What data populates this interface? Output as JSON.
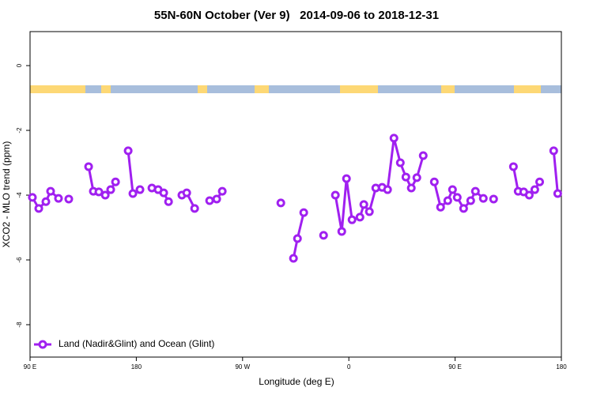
{
  "chart_data": {
    "type": "line",
    "title": "55N-60N October (Ver 9)   2014-09-06 to 2018-12-31",
    "x_label": "Longitude (deg E)",
    "y_label": "XCO2 - MLO trend (ppm)",
    "xlim": [
      90,
      540
    ],
    "ylim": [
      -9,
      1.05
    ],
    "xticks": [
      {
        "value": 90,
        "label": "90 E"
      },
      180,
      {
        "value": 270,
        "label": "90 W"
      },
      {
        "value": 360,
        "label": "0"
      },
      {
        "value": 450,
        "label": "90 E"
      },
      {
        "value": 540,
        "label": "180"
      }
    ],
    "yticks": [
      0,
      -2,
      -4,
      -6,
      -8
    ],
    "legend": "bottomleft",
    "x": [
      92.0,
      97.4,
      103.4,
      107.4,
      114.1,
      null,
      122.8,
      null,
      139.6,
      143.6,
      148.3,
      153.7,
      158.3,
      162.4,
      null,
      173.1,
      177.1,
      183.1,
      null,
      193.2,
      198.5,
      203.2,
      207.3,
      null,
      218.6,
      222.7,
      229.4,
      null,
      242.1,
      248.1,
      252.8,
      null,
      302.4,
      null,
      313.1,
      316.5,
      321.8,
      null,
      338.6,
      null,
      348.6,
      354.0,
      358.0,
      362.7,
      369.4,
      372.7,
      377.4,
      382.8,
      388.2,
      392.8,
      398.2,
      403.6,
      408.3,
      412.9,
      417.6,
      423.0,
      null,
      432.4,
      437.7,
      443.8,
      447.8,
      451.8,
      457.2,
      463.2,
      467.2,
      473.9,
      null,
      482.6,
      null,
      499.4,
      503.4,
      508.1,
      512.8,
      517.5,
      521.6,
      null,
      533.5,
      536.9
    ],
    "series": [
      {
        "name": "Land (Nadir&Glint) and Ocean (Glint)",
        "color": "#a020f0",
        "values": [
          -4.07,
          -4.41,
          -4.2,
          -3.88,
          -4.1,
          null,
          -4.12,
          null,
          -3.12,
          -3.88,
          -3.9,
          -4.0,
          -3.83,
          -3.59,
          null,
          -2.63,
          -3.95,
          -3.83,
          null,
          -3.78,
          -3.83,
          -3.93,
          -4.2,
          null,
          -4.0,
          -3.93,
          -4.41,
          null,
          -4.17,
          -4.12,
          -3.88,
          null,
          -4.24,
          null,
          -5.95,
          -5.34,
          -4.54,
          null,
          -5.24,
          null,
          -4.0,
          -5.12,
          -3.49,
          -4.76,
          -4.68,
          -4.29,
          -4.51,
          -3.78,
          -3.76,
          -3.83,
          -2.24,
          -3.0,
          -3.44,
          -3.78,
          -3.46,
          -2.78,
          null,
          -3.59,
          -4.37,
          -4.17,
          -3.83,
          -4.07,
          -4.41,
          -4.17,
          -3.88,
          -4.1,
          null,
          -4.12,
          null,
          -3.12,
          -3.88,
          -3.9,
          -4.0,
          -3.83,
          -3.59,
          null,
          -2.63,
          -3.95
        ]
      }
    ]
  }
}
